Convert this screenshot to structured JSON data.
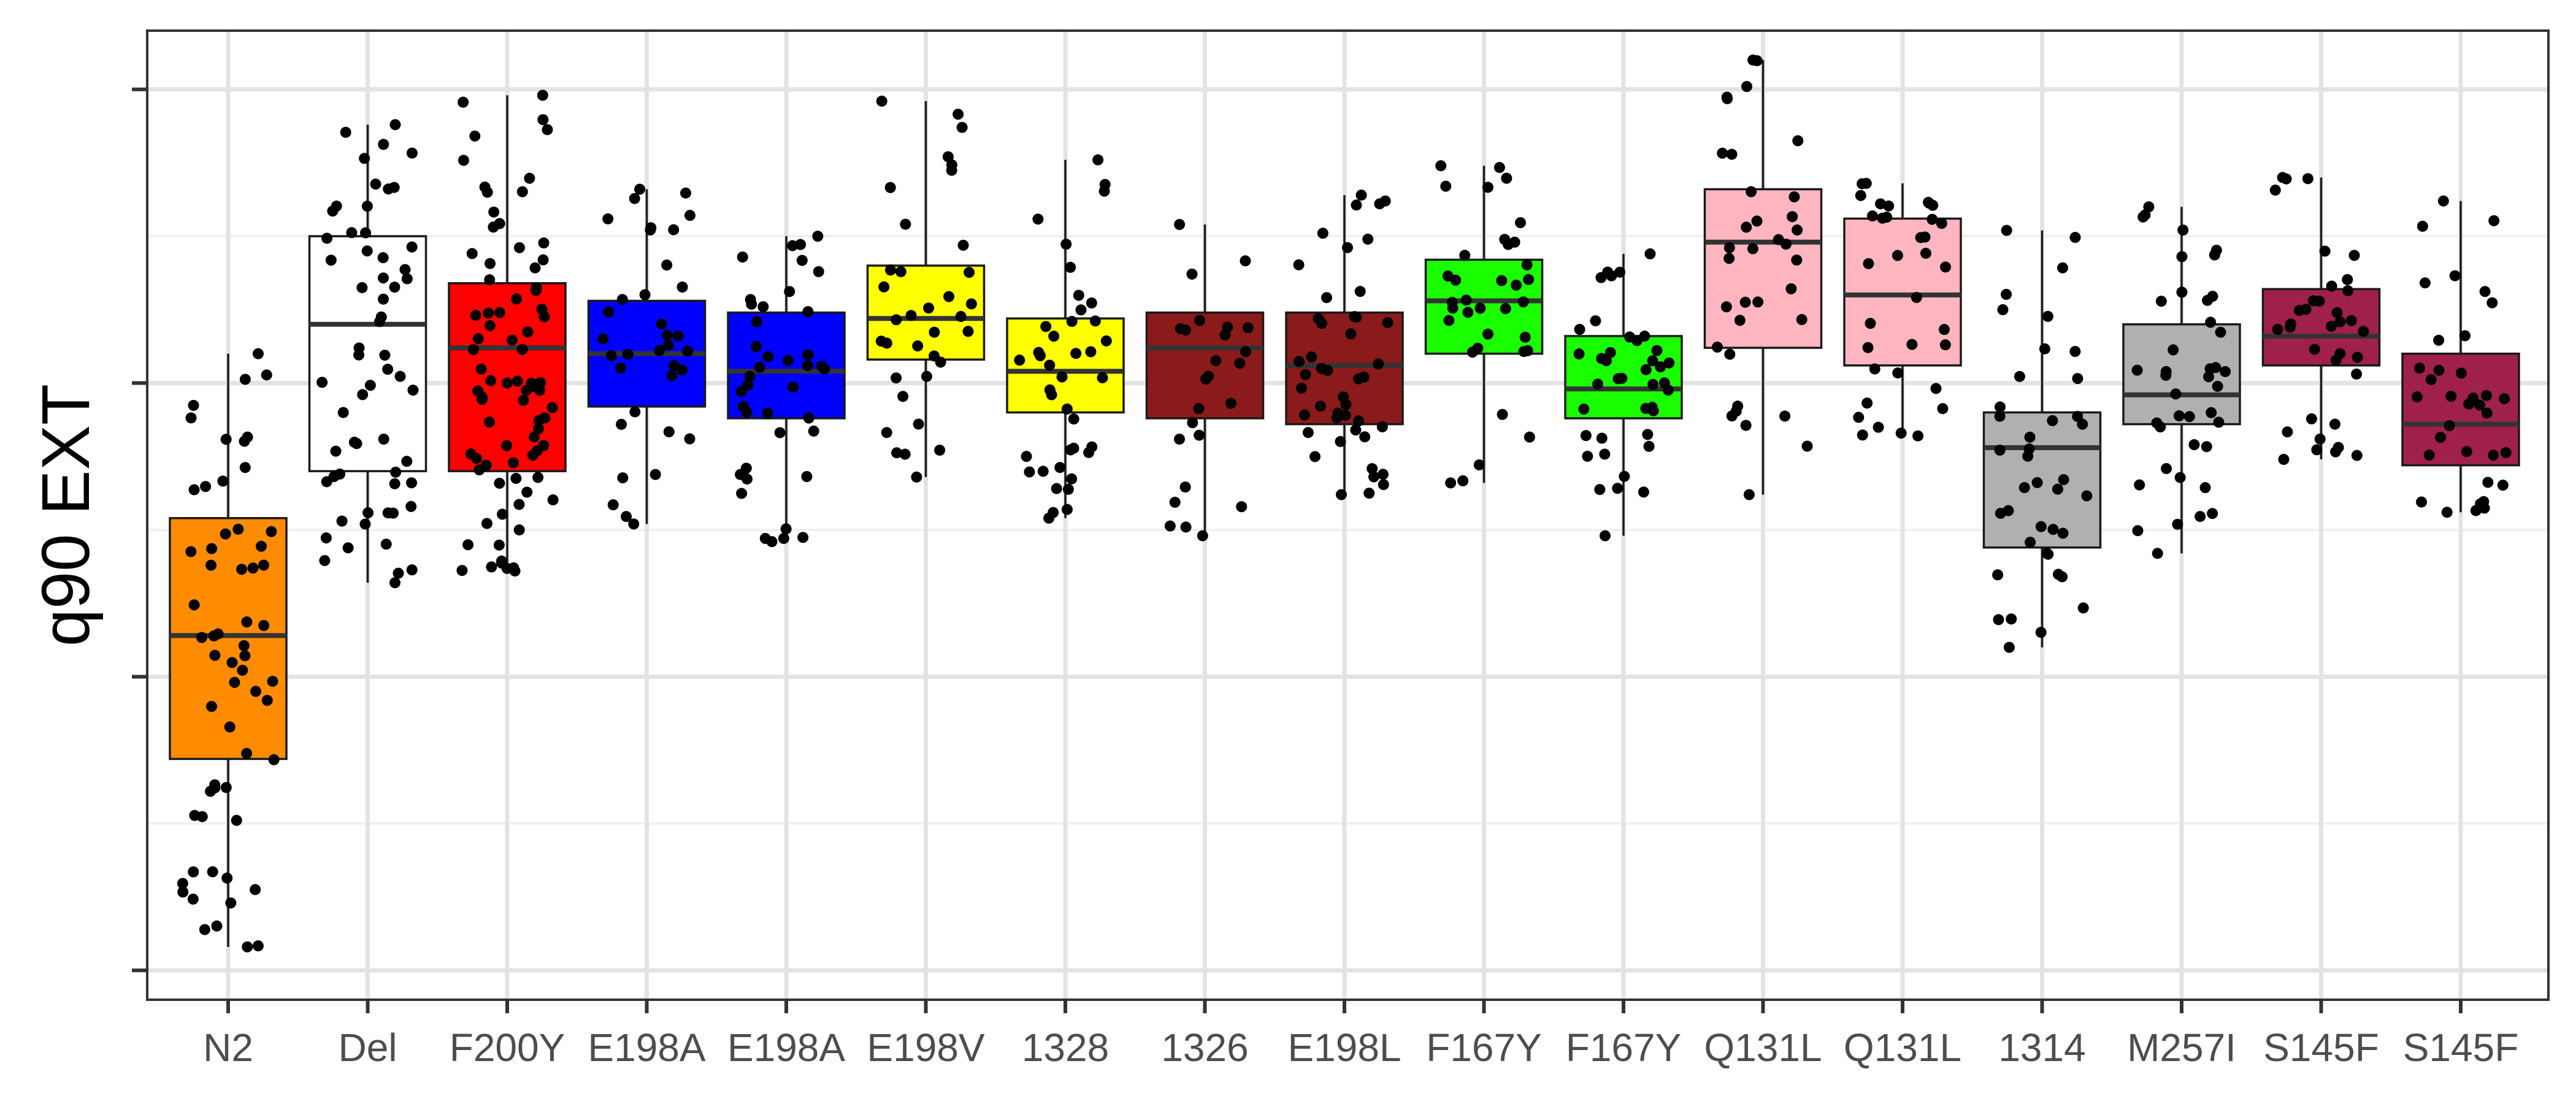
{
  "chart_data": {
    "type": "boxplot",
    "ylabel": "q90 EXT",
    "xlabel": "",
    "title": "",
    "ylim": [
      -0.05,
      1.6
    ],
    "y_gridlines_visible": true,
    "y_tick_labels_visible": false,
    "legend": "none",
    "categories": [
      "N2",
      "Del",
      "F200Y",
      "E198A",
      "E198A",
      "E198V",
      "1328",
      "1326",
      "E198L",
      "F167Y",
      "F167Y",
      "Q131L",
      "Q131L",
      "1314",
      "M257I",
      "S145F",
      "S145F"
    ],
    "colors": [
      "#FF8C00",
      "#FFFFFF",
      "#FF0000",
      "#0000FF",
      "#0000FF",
      "#FFFF00",
      "#FFFF00",
      "#8B1A1A",
      "#8B1A1A",
      "#1AFF00",
      "#1AFF00",
      "#FFB6C1",
      "#FFB6C1",
      "#B0B0B0",
      "#B0B0B0",
      "#A0204C",
      "#A0204C"
    ],
    "boxes": [
      {
        "q1": 0.36,
        "median": 0.57,
        "q3": 0.77,
        "whisker_low": 0.04,
        "whisker_high": 1.05,
        "n": 60
      },
      {
        "q1": 0.85,
        "median": 1.1,
        "q3": 1.25,
        "whisker_low": 0.66,
        "whisker_high": 1.44,
        "n": 60
      },
      {
        "q1": 0.85,
        "median": 1.06,
        "q3": 1.17,
        "whisker_low": 0.68,
        "whisker_high": 1.49,
        "n": 80
      },
      {
        "q1": 0.96,
        "median": 1.05,
        "q3": 1.14,
        "whisker_low": 0.76,
        "whisker_high": 1.33,
        "n": 35
      },
      {
        "q1": 0.94,
        "median": 1.02,
        "q3": 1.12,
        "whisker_low": 0.73,
        "whisker_high": 1.25,
        "n": 40
      },
      {
        "q1": 1.04,
        "median": 1.11,
        "q3": 1.2,
        "whisker_low": 0.84,
        "whisker_high": 1.48,
        "n": 35
      },
      {
        "q1": 0.95,
        "median": 1.02,
        "q3": 1.11,
        "whisker_low": 0.77,
        "whisker_high": 1.38,
        "n": 40
      },
      {
        "q1": 0.94,
        "median": 1.06,
        "q3": 1.12,
        "whisker_low": 0.74,
        "whisker_high": 1.27,
        "n": 25
      },
      {
        "q1": 0.93,
        "median": 1.03,
        "q3": 1.12,
        "whisker_low": 0.81,
        "whisker_high": 1.32,
        "n": 45
      },
      {
        "q1": 1.05,
        "median": 1.14,
        "q3": 1.21,
        "whisker_low": 0.83,
        "whisker_high": 1.37,
        "n": 35
      },
      {
        "q1": 0.94,
        "median": 0.99,
        "q3": 1.08,
        "whisker_low": 0.74,
        "whisker_high": 1.22,
        "n": 40
      },
      {
        "q1": 1.06,
        "median": 1.24,
        "q3": 1.33,
        "whisker_low": 0.81,
        "whisker_high": 1.55,
        "n": 35
      },
      {
        "q1": 1.03,
        "median": 1.15,
        "q3": 1.28,
        "whisker_low": 0.91,
        "whisker_high": 1.34,
        "n": 35
      },
      {
        "q1": 0.72,
        "median": 0.89,
        "q3": 0.95,
        "whisker_low": 0.55,
        "whisker_high": 1.26,
        "n": 40
      },
      {
        "q1": 0.93,
        "median": 0.98,
        "q3": 1.1,
        "whisker_low": 0.71,
        "whisker_high": 1.3,
        "n": 40
      },
      {
        "q1": 1.03,
        "median": 1.08,
        "q3": 1.16,
        "whisker_low": 0.87,
        "whisker_high": 1.35,
        "n": 35
      },
      {
        "q1": 0.86,
        "median": 0.93,
        "q3": 1.05,
        "whisker_low": 0.78,
        "whisker_high": 1.31,
        "n": 35
      }
    ]
  }
}
